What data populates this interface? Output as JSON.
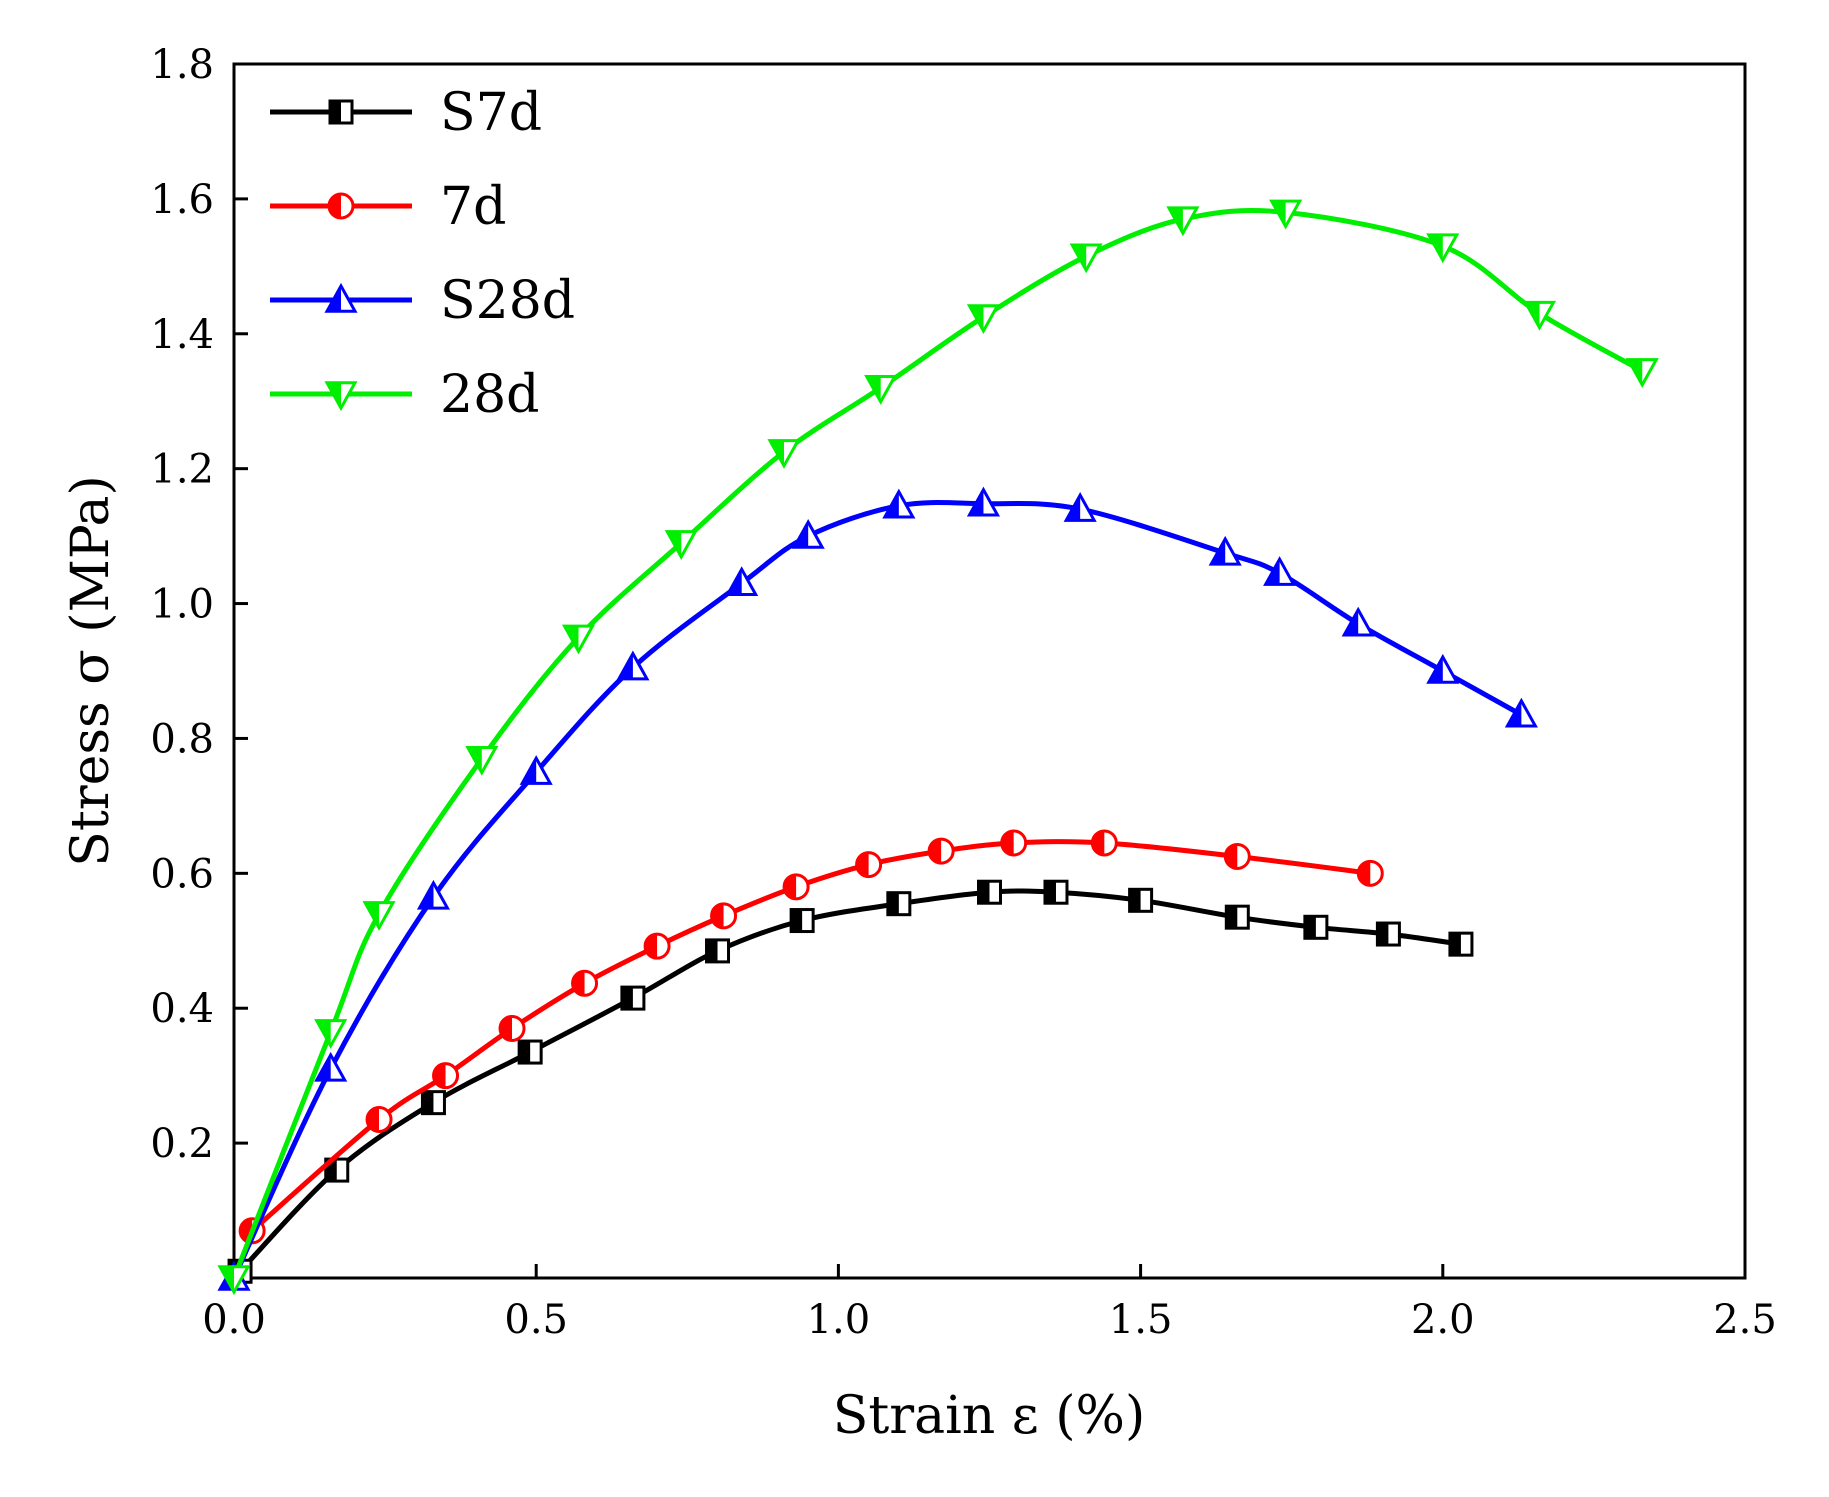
{
  "chart_data": {
    "type": "line",
    "title": "",
    "xlabel": "Strain ε (%)",
    "ylabel": "Stress σ (MPa)",
    "xlim": [
      0,
      2.5
    ],
    "ylim": [
      0,
      1.8
    ],
    "xticks": [
      "0.0",
      "0.5",
      "1.0",
      "1.5",
      "2.0",
      "2.5"
    ],
    "yticks": [
      "0.2",
      "0.4",
      "0.6",
      "0.8",
      "1.0",
      "1.2",
      "1.4",
      "1.6",
      "1.8"
    ],
    "legend_position": "top-left",
    "series": [
      {
        "name": "S7d",
        "color": "#000000",
        "marker": "square-half",
        "x": [
          0.01,
          0.17,
          0.33,
          0.49,
          0.66,
          0.8,
          0.94,
          1.1,
          1.25,
          1.36,
          1.5,
          1.66,
          1.79,
          1.91,
          2.03
        ],
        "y": [
          0.01,
          0.16,
          0.26,
          0.335,
          0.415,
          0.485,
          0.53,
          0.555,
          0.572,
          0.572,
          0.56,
          0.535,
          0.52,
          0.51,
          0.495
        ]
      },
      {
        "name": "7d",
        "color": "#ff0000",
        "marker": "circle-half",
        "x": [
          0.03,
          0.24,
          0.35,
          0.46,
          0.58,
          0.7,
          0.81,
          0.93,
          1.05,
          1.17,
          1.29,
          1.44,
          1.66,
          1.88
        ],
        "y": [
          0.07,
          0.235,
          0.3,
          0.37,
          0.437,
          0.492,
          0.537,
          0.58,
          0.613,
          0.633,
          0.645,
          0.645,
          0.625,
          0.6
        ]
      },
      {
        "name": "S28d",
        "color": "#0000ff",
        "marker": "triangle-up-half",
        "x": [
          0.0,
          0.16,
          0.33,
          0.5,
          0.66,
          0.84,
          0.95,
          1.1,
          1.24,
          1.4,
          1.64,
          1.73,
          1.86,
          2.0,
          2.13
        ],
        "y": [
          0.0,
          0.31,
          0.565,
          0.75,
          0.905,
          1.03,
          1.1,
          1.145,
          1.148,
          1.14,
          1.075,
          1.045,
          0.97,
          0.9,
          0.835
        ]
      },
      {
        "name": "28d",
        "color": "#00ee00",
        "marker": "triangle-down-half",
        "x": [
          0.0,
          0.16,
          0.24,
          0.41,
          0.57,
          0.74,
          0.91,
          1.07,
          1.24,
          1.41,
          1.57,
          1.74,
          2.0,
          2.16,
          2.33
        ],
        "y": [
          0.0,
          0.365,
          0.54,
          0.77,
          0.95,
          1.09,
          1.225,
          1.32,
          1.425,
          1.515,
          1.57,
          1.58,
          1.53,
          1.43,
          1.345
        ]
      }
    ]
  }
}
